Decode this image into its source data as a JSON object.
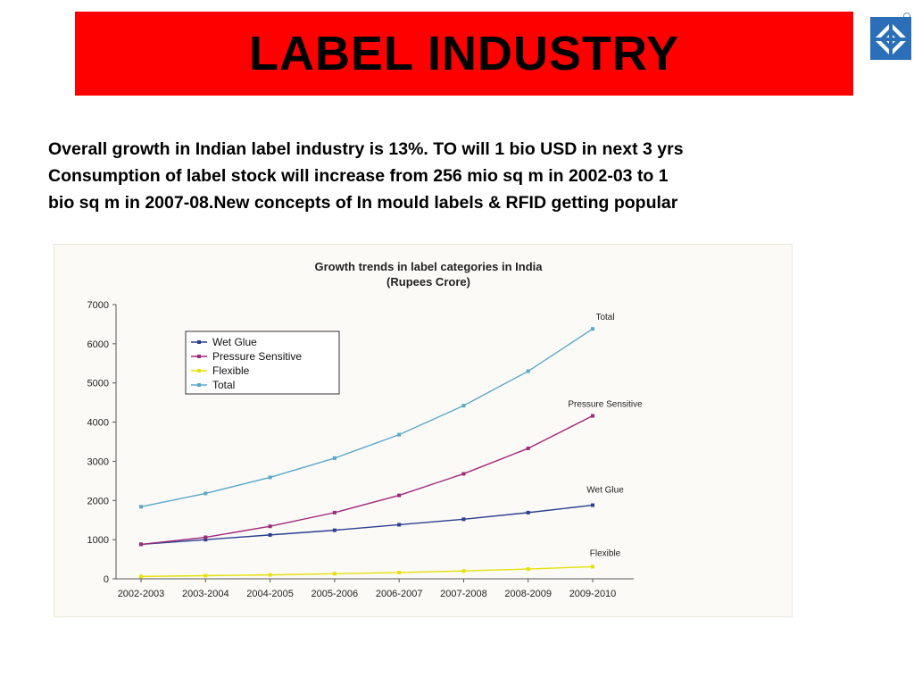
{
  "slide": {
    "title": "LABEL INDUSTRY",
    "title_bg": "#ff0000",
    "summary_lines": [
      "Overall growth in Indian label industry is 13%. TO will 1 bio USD in next 3 yrs",
      "Consumption of label stock will increase from 256 mio sq m in 2002-03 to 1",
      "bio sq m  in 2007-08.New concepts of In mould labels & RFID getting popular"
    ]
  },
  "chart_data": {
    "type": "line",
    "title": "Growth trends in label categories in India",
    "subtitle": "(Rupees Crore)",
    "xlabel": "",
    "ylabel": "",
    "categories": [
      "2002-2003",
      "2003-2004",
      "2004-2005",
      "2005-2006",
      "2006-2007",
      "2007-2008",
      "2008-2009",
      "2009-2010"
    ],
    "ylim": [
      0,
      7000
    ],
    "yticks": [
      0,
      1000,
      2000,
      3000,
      4000,
      5000,
      6000,
      7000
    ],
    "grid": false,
    "legend_position": "top-left",
    "series": [
      {
        "name": "Wet Glue",
        "color": "#2b3f8f",
        "end_label": "Wet Glue",
        "values": [
          880,
          1000,
          1120,
          1240,
          1380,
          1520,
          1690,
          1880
        ]
      },
      {
        "name": "Pressure Sensitive",
        "color": "#a0287a",
        "end_label": "Pressure Sensitive",
        "values": [
          880,
          1060,
          1340,
          1690,
          2130,
          2680,
          3330,
          4160
        ]
      },
      {
        "name": "Flexible",
        "color": "#e6e00a",
        "end_label": "Flexible",
        "values": [
          60,
          80,
          100,
          130,
          160,
          200,
          250,
          310
        ]
      },
      {
        "name": "Total",
        "color": "#5aa8c8",
        "end_label": "Total",
        "values": [
          1840,
          2180,
          2590,
          3080,
          3680,
          4420,
          5300,
          6380
        ]
      }
    ]
  }
}
